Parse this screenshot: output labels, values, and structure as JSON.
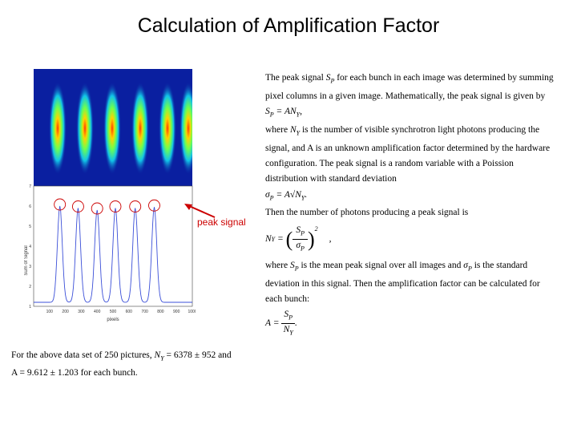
{
  "slide": {
    "title": "Calculation of Amplification Factor"
  },
  "plot": {
    "ylabel": "Sum of Signal",
    "xlabel": "pixels",
    "x_ticks": [
      "100",
      "200",
      "300",
      "400",
      "500",
      "600",
      "700",
      "800",
      "900",
      "1000"
    ],
    "y_ticks": [
      "7",
      "6",
      "5",
      "4",
      "3",
      "2",
      "1"
    ],
    "callout": "peak signal"
  },
  "chart_data": {
    "type": "line",
    "xlabel": "pixels",
    "ylabel": "Sum of Signal",
    "xlim": [
      0,
      1000
    ],
    "ylim": [
      1,
      7
    ],
    "peaks_x": [
      165,
      280,
      400,
      515,
      640,
      760
    ],
    "peaks_y": [
      6.0,
      5.9,
      5.8,
      5.9,
      5.9,
      5.95
    ],
    "baseline": 1.2
  },
  "right_column": {
    "p1a": "The peak signal",
    "p1_sym": "S",
    "p1_sub": "P",
    "p1b": "for each bunch in each image was determined by summing pixel columns in a given image. Mathematically, the peak signal is given by",
    "eq1": "S",
    "eq1_sub": "P",
    "eq1_rhs": "= AN",
    "eq1_rhs_sub": "Y",
    "eq1_end": ",",
    "p2a": "where",
    "p2_sym": "N",
    "p2_sub": "Y",
    "p2b": "is the number of visible synchrotron light photons producing the signal, and A is an unknown amplification factor determined by the hardware configuration. The peak signal is a random variable with a Poission distribution with standard deviation",
    "eq2_lhs": "σ",
    "eq2_lhs_sub": "P",
    "eq2_rhs": "= A√N",
    "eq2_rhs_sub": "Y",
    "eq2_end": ".",
    "p3": "Then the number of photons producing a peak signal is",
    "eq3_lhs": "N",
    "eq3_lhs_sub": "Y",
    "eq3_num": "S",
    "eq3_num_sub": "P",
    "eq3_den": "σ",
    "eq3_den_sub": "P",
    "eq3_pow": "2",
    "eq3_end": ",",
    "p4a": "where",
    "p4_sym": "S",
    "p4_sub": "P",
    "p4b": "is the mean peak signal over all images and",
    "p4_sym2": "σ",
    "p4_sub2": "P",
    "p4c": "is the standard deviation in this signal. Then the amplification factor can be calculated for each bunch:",
    "eq4_lhs": "A =",
    "eq4_num": "S",
    "eq4_num_sub": "P",
    "eq4_den": "N",
    "eq4_den_sub": "Y",
    "eq4_end": "."
  },
  "bottom": {
    "line1a": "For the above data set of 250 pictures,",
    "line1_sym": "N",
    "line1_sub": "Y",
    "line1b": "= 6378 ± 952 and",
    "line2a": "A = 9.612 ± 1.203 for each bunch."
  }
}
